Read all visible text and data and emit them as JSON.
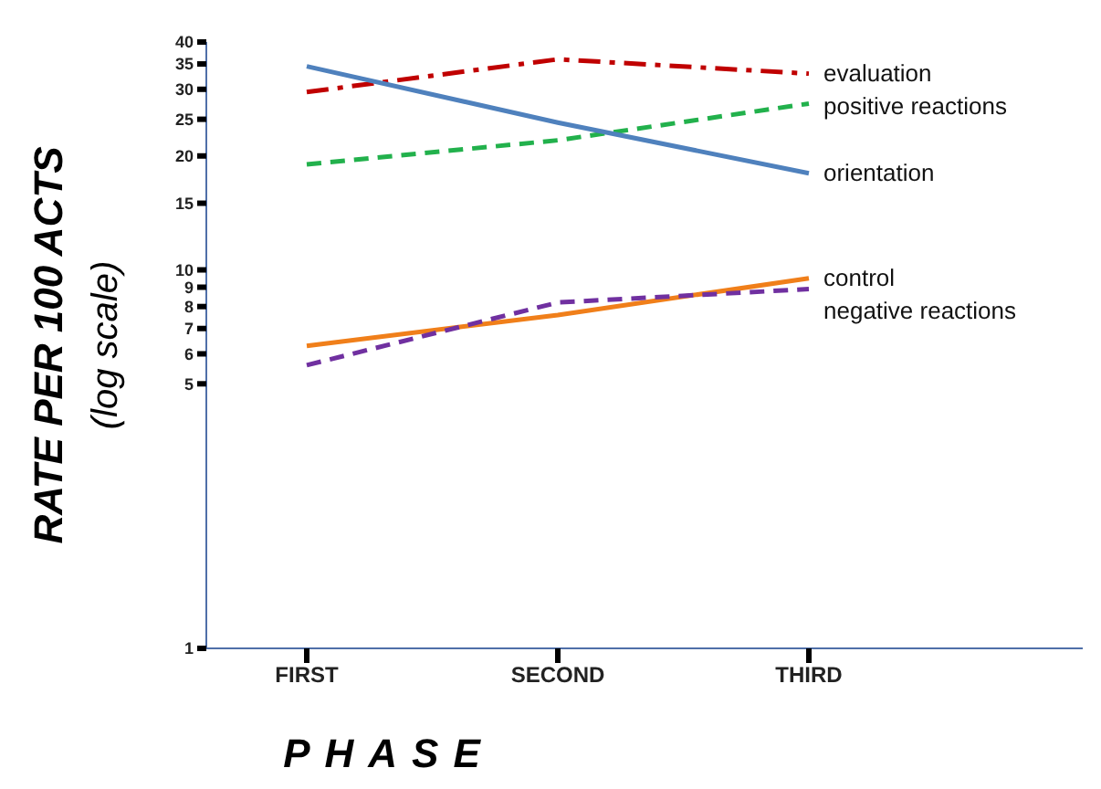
{
  "chart_data": {
    "type": "line",
    "xlabel": "PHASE",
    "ylabel": "RATE PER 100 ACTS\n(log scale)",
    "categories": [
      "FIRST",
      "SECOND",
      "THIRD"
    ],
    "series": [
      {
        "name": "evaluation",
        "color": "#c00000",
        "line_style": "dashdot",
        "values": [
          29.5,
          36,
          33
        ]
      },
      {
        "name": "positive reactions",
        "color": "#22b14c",
        "line_style": "dashed",
        "values": [
          19,
          22,
          27.5
        ]
      },
      {
        "name": "orientation",
        "color": "#4f81bd",
        "line_style": "solid",
        "values": [
          34.5,
          24.5,
          18
        ]
      },
      {
        "name": "control",
        "color": "#f07f1a",
        "line_style": "solid",
        "values": [
          6.3,
          7.6,
          9.5
        ]
      },
      {
        "name": "negative reactions",
        "color": "#7030a0",
        "line_style": "dashed",
        "values": [
          5.6,
          8.2,
          8.9
        ]
      }
    ],
    "log": "y",
    "ylim": [
      1,
      40
    ],
    "yticks": [
      1,
      5,
      6,
      7,
      8,
      9,
      10,
      15,
      20,
      25,
      30,
      35,
      40
    ],
    "legend": false,
    "grid": false,
    "marker": "none"
  }
}
